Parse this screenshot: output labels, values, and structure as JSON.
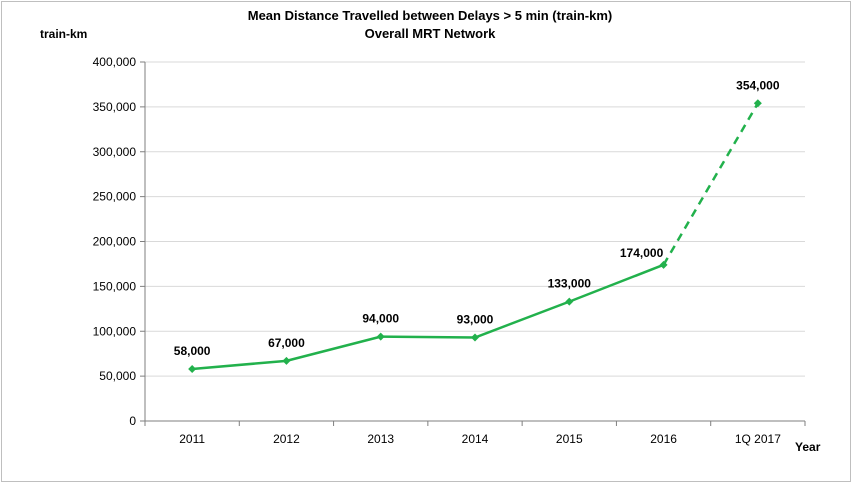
{
  "chart_data": {
    "type": "line",
    "title": "Mean Distance Travelled between Delays > 5 min (train-km)",
    "subtitle": "Overall MRT Network",
    "ylabel": "train-km",
    "xlabel": "Year",
    "categories": [
      "2011",
      "2012",
      "2013",
      "2014",
      "2015",
      "2016",
      "1Q 2017"
    ],
    "series": [
      {
        "values": [
          58000,
          67000,
          94000,
          93000,
          133000,
          174000,
          354000
        ],
        "data_labels": [
          "58,000",
          "67,000",
          "94,000",
          "93,000",
          "133,000",
          "174,000",
          "354,000"
        ],
        "color": "#22b14c",
        "dashed_from_index": 5
      }
    ],
    "ylim": [
      0,
      400000
    ],
    "yticks": [
      0,
      50000,
      100000,
      150000,
      200000,
      250000,
      300000,
      350000,
      400000
    ],
    "ytick_labels": [
      "0",
      "50,000",
      "100,000",
      "150,000",
      "200,000",
      "250,000",
      "300,000",
      "350,000",
      "400,000"
    ],
    "grid": true,
    "legend": "none"
  }
}
